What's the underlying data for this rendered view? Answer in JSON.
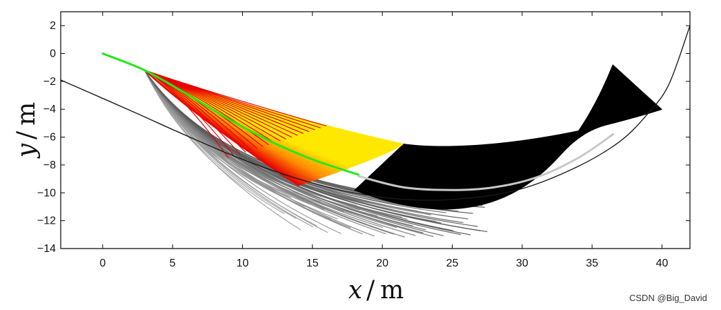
{
  "chart_data": {
    "type": "line",
    "xlabel": {
      "var": "x",
      "sep": "/",
      "unit": "m"
    },
    "ylabel": {
      "var": "y",
      "sep": "/",
      "unit": "m"
    },
    "xlim": [
      -3,
      42
    ],
    "ylim": [
      -14,
      3
    ],
    "xticks": [
      0,
      5,
      10,
      15,
      20,
      25,
      30,
      35,
      40
    ],
    "yticks": [
      2,
      0,
      -2,
      -4,
      -6,
      -8,
      -10,
      -12,
      -14
    ],
    "grid": false,
    "colors": {
      "selected_path": "#22e81c",
      "reference_path": "#1a1a1a",
      "extension_path": "#c8c8c8",
      "low_cost": "#ffe800",
      "mid_cost": "#ff8a00",
      "high_cost": "#e80000",
      "collision": "#9a9a9a",
      "extension_bundle": "#000000"
    },
    "series": [
      {
        "x": [
          -3,
          2,
          6,
          10,
          14,
          18,
          22,
          26,
          30,
          34,
          37,
          39,
          40.5,
          42
        ],
        "y": [
          -1.9,
          -4.1,
          -5.9,
          -7.6,
          -9.0,
          -10.0,
          -10.5,
          -10.4,
          -9.7,
          -8.1,
          -6.3,
          -4.3,
          -2.2,
          2.0
        ],
        "color": "#1a1a1a"
      },
      {
        "x": [
          0,
          3,
          6,
          9,
          12,
          15,
          18.3
        ],
        "y": [
          0,
          -1.2,
          -2.9,
          -4.7,
          -6.3,
          -7.6,
          -8.7
        ],
        "color": "#22e81c"
      },
      {
        "x": [
          18.3,
          21.5,
          25,
          28,
          31,
          34,
          36.5
        ],
        "y": [
          -8.8,
          -9.6,
          -9.8,
          -9.6,
          -8.9,
          -7.5,
          -5.8
        ],
        "color": "#c8c8c8"
      }
    ],
    "bundles": {
      "upper_end": [
        21.5,
        -6.5
      ],
      "lower_end": [
        21.5,
        -9.8
      ],
      "extension_tips_x": [
        36.5,
        40
      ],
      "extension_tips_y": [
        -0.8,
        -4.0
      ],
      "gray_end_x": [
        13,
        27.5
      ],
      "gray_end_y": [
        -11.5,
        -12.1
      ]
    }
  },
  "watermark": "CSDN @Big_David"
}
